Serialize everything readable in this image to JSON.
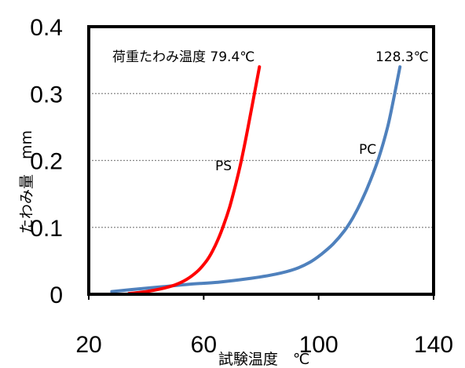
{
  "chart_data": {
    "type": "line",
    "xlabel": "試験温度　℃",
    "ylabel": "たわみ量　mm",
    "xlim": [
      20,
      140
    ],
    "ylim": [
      0,
      0.4
    ],
    "x_ticks": [
      "20",
      "60",
      "100",
      "140"
    ],
    "y_ticks": [
      "0",
      "0.1",
      "0.2",
      "0.3",
      "0.4"
    ],
    "grid": "horizontal-dotted",
    "series": [
      {
        "name": "PS",
        "color": "#ff0000",
        "x": [
          34,
          40,
          45,
          50,
          54,
          58,
          61,
          63,
          65,
          67,
          69,
          71,
          73,
          75,
          77,
          79.4
        ],
        "y": [
          0.001,
          0.004,
          0.008,
          0.014,
          0.022,
          0.035,
          0.05,
          0.064,
          0.082,
          0.104,
          0.13,
          0.162,
          0.198,
          0.24,
          0.285,
          0.34
        ]
      },
      {
        "name": "PC",
        "color": "#4f81bd",
        "x": [
          28,
          35,
          45,
          55,
          65,
          75,
          85,
          92,
          97,
          101,
          105,
          109,
          112,
          115,
          118,
          121,
          124,
          126,
          128.3
        ],
        "y": [
          0.004,
          0.007,
          0.011,
          0.015,
          0.018,
          0.023,
          0.03,
          0.038,
          0.048,
          0.06,
          0.075,
          0.095,
          0.115,
          0.14,
          0.17,
          0.205,
          0.25,
          0.29,
          0.34
        ]
      }
    ],
    "annotations": {
      "ps_label": "PS",
      "pc_label": "PC",
      "ps_temp": "荷重たわみ温度 79.4℃",
      "pc_temp": "128.3℃"
    }
  }
}
